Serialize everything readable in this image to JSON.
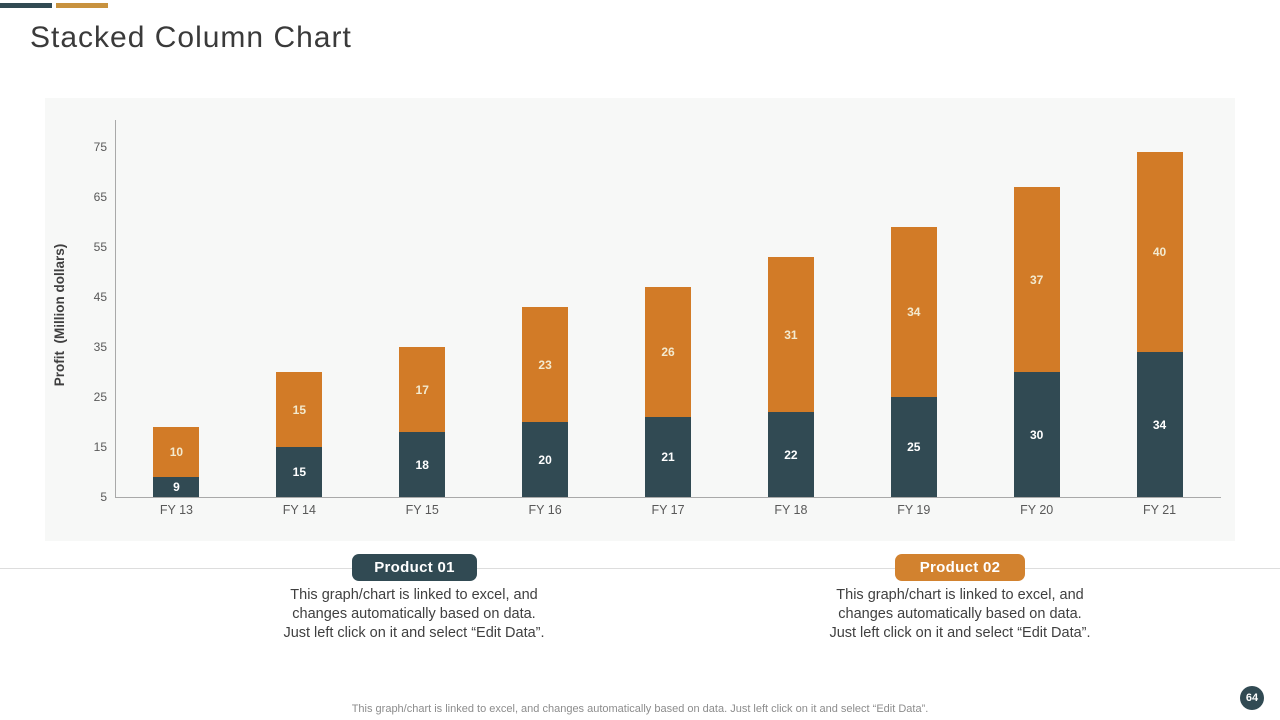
{
  "slide": {
    "title": "Stacked Column Chart",
    "page_number": "64",
    "footer": "This graph/chart is linked to excel,  and changes automatically based on data. Just left click on it and select “Edit Data”.",
    "accent_colors": {
      "primary": "#314a53",
      "secondary": "#c8923e"
    },
    "page_badge_color": "#314a53"
  },
  "chart_data": {
    "type": "bar",
    "stacked": true,
    "categories": [
      "FY 13",
      "FY 14",
      "FY 15",
      "FY 16",
      "FY 17",
      "FY 18",
      "FY 19",
      "FY 20",
      "FY 21"
    ],
    "series": [
      {
        "name": "Product 01",
        "color": "#314a53",
        "label_color": "#ffffff",
        "values": [
          9,
          15,
          18,
          20,
          21,
          22,
          25,
          30,
          34
        ]
      },
      {
        "name": "Product 02",
        "color": "#d27b27",
        "label_color": "#f3eacf",
        "values": [
          10,
          15,
          17,
          23,
          26,
          31,
          34,
          37,
          40
        ]
      }
    ],
    "totals": [
      19,
      30,
      35,
      43,
      47,
      53,
      59,
      67,
      74
    ],
    "xlabel": "",
    "ylabel": "Profit  (Million dollars)",
    "y_ticks": [
      5,
      15,
      25,
      35,
      45,
      55,
      65,
      75
    ],
    "y_min": 5,
    "y_max": 80,
    "grid": false,
    "legend_position": "below"
  },
  "legend": [
    {
      "label": "Product 01",
      "color": "#314a53",
      "description_lines": [
        "This graph/chart  is linked to excel,  and",
        "changes automatically  based on data.",
        "Just left click on it and select “Edit Data”."
      ]
    },
    {
      "label": "Product 02",
      "color": "#d2822f",
      "description_lines": [
        "This graph/chart  is linked to excel,  and",
        "changes  automatically  based on data.",
        "Just left click on it and select “Edit Data”."
      ]
    }
  ]
}
